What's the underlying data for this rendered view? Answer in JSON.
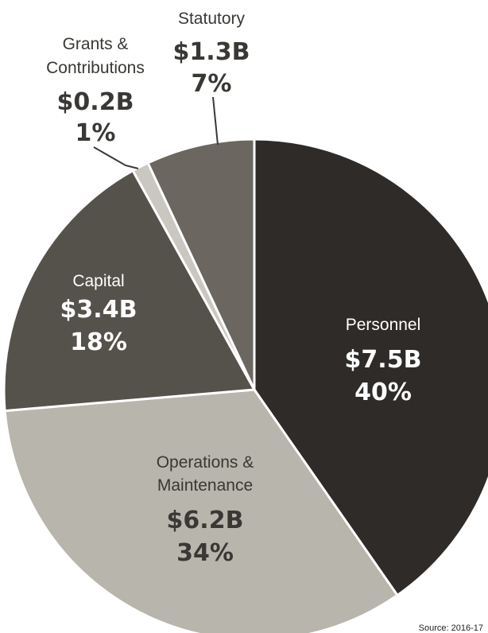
{
  "chart_data": {
    "type": "pie",
    "slices": [
      {
        "name": "Personnel",
        "amount": "$7.5B",
        "percent_label": "40%",
        "value": 7.5,
        "color": "#2e2b28",
        "text_color": "#ffffff"
      },
      {
        "name": "Operations & Maintenance",
        "amount": "$6.2B",
        "percent_label": "34%",
        "value": 6.2,
        "color": "#b8b5ac",
        "text_color": "#3a3834"
      },
      {
        "name": "Capital",
        "amount": "$3.4B",
        "percent_label": "18%",
        "value": 3.4,
        "color": "#55514b",
        "text_color": "#ffffff"
      },
      {
        "name": "Grants & Contributions",
        "amount": "$0.2B",
        "percent_label": "1%",
        "value": 0.2,
        "color": "#c9c7c0",
        "text_color": "#3a3834"
      },
      {
        "name": "Statutory",
        "amount": "$1.3B",
        "percent_label": "7%",
        "value": 1.3,
        "color": "#6b6760",
        "text_color": "#3a3834"
      }
    ]
  },
  "source": "Source: 2016-17"
}
